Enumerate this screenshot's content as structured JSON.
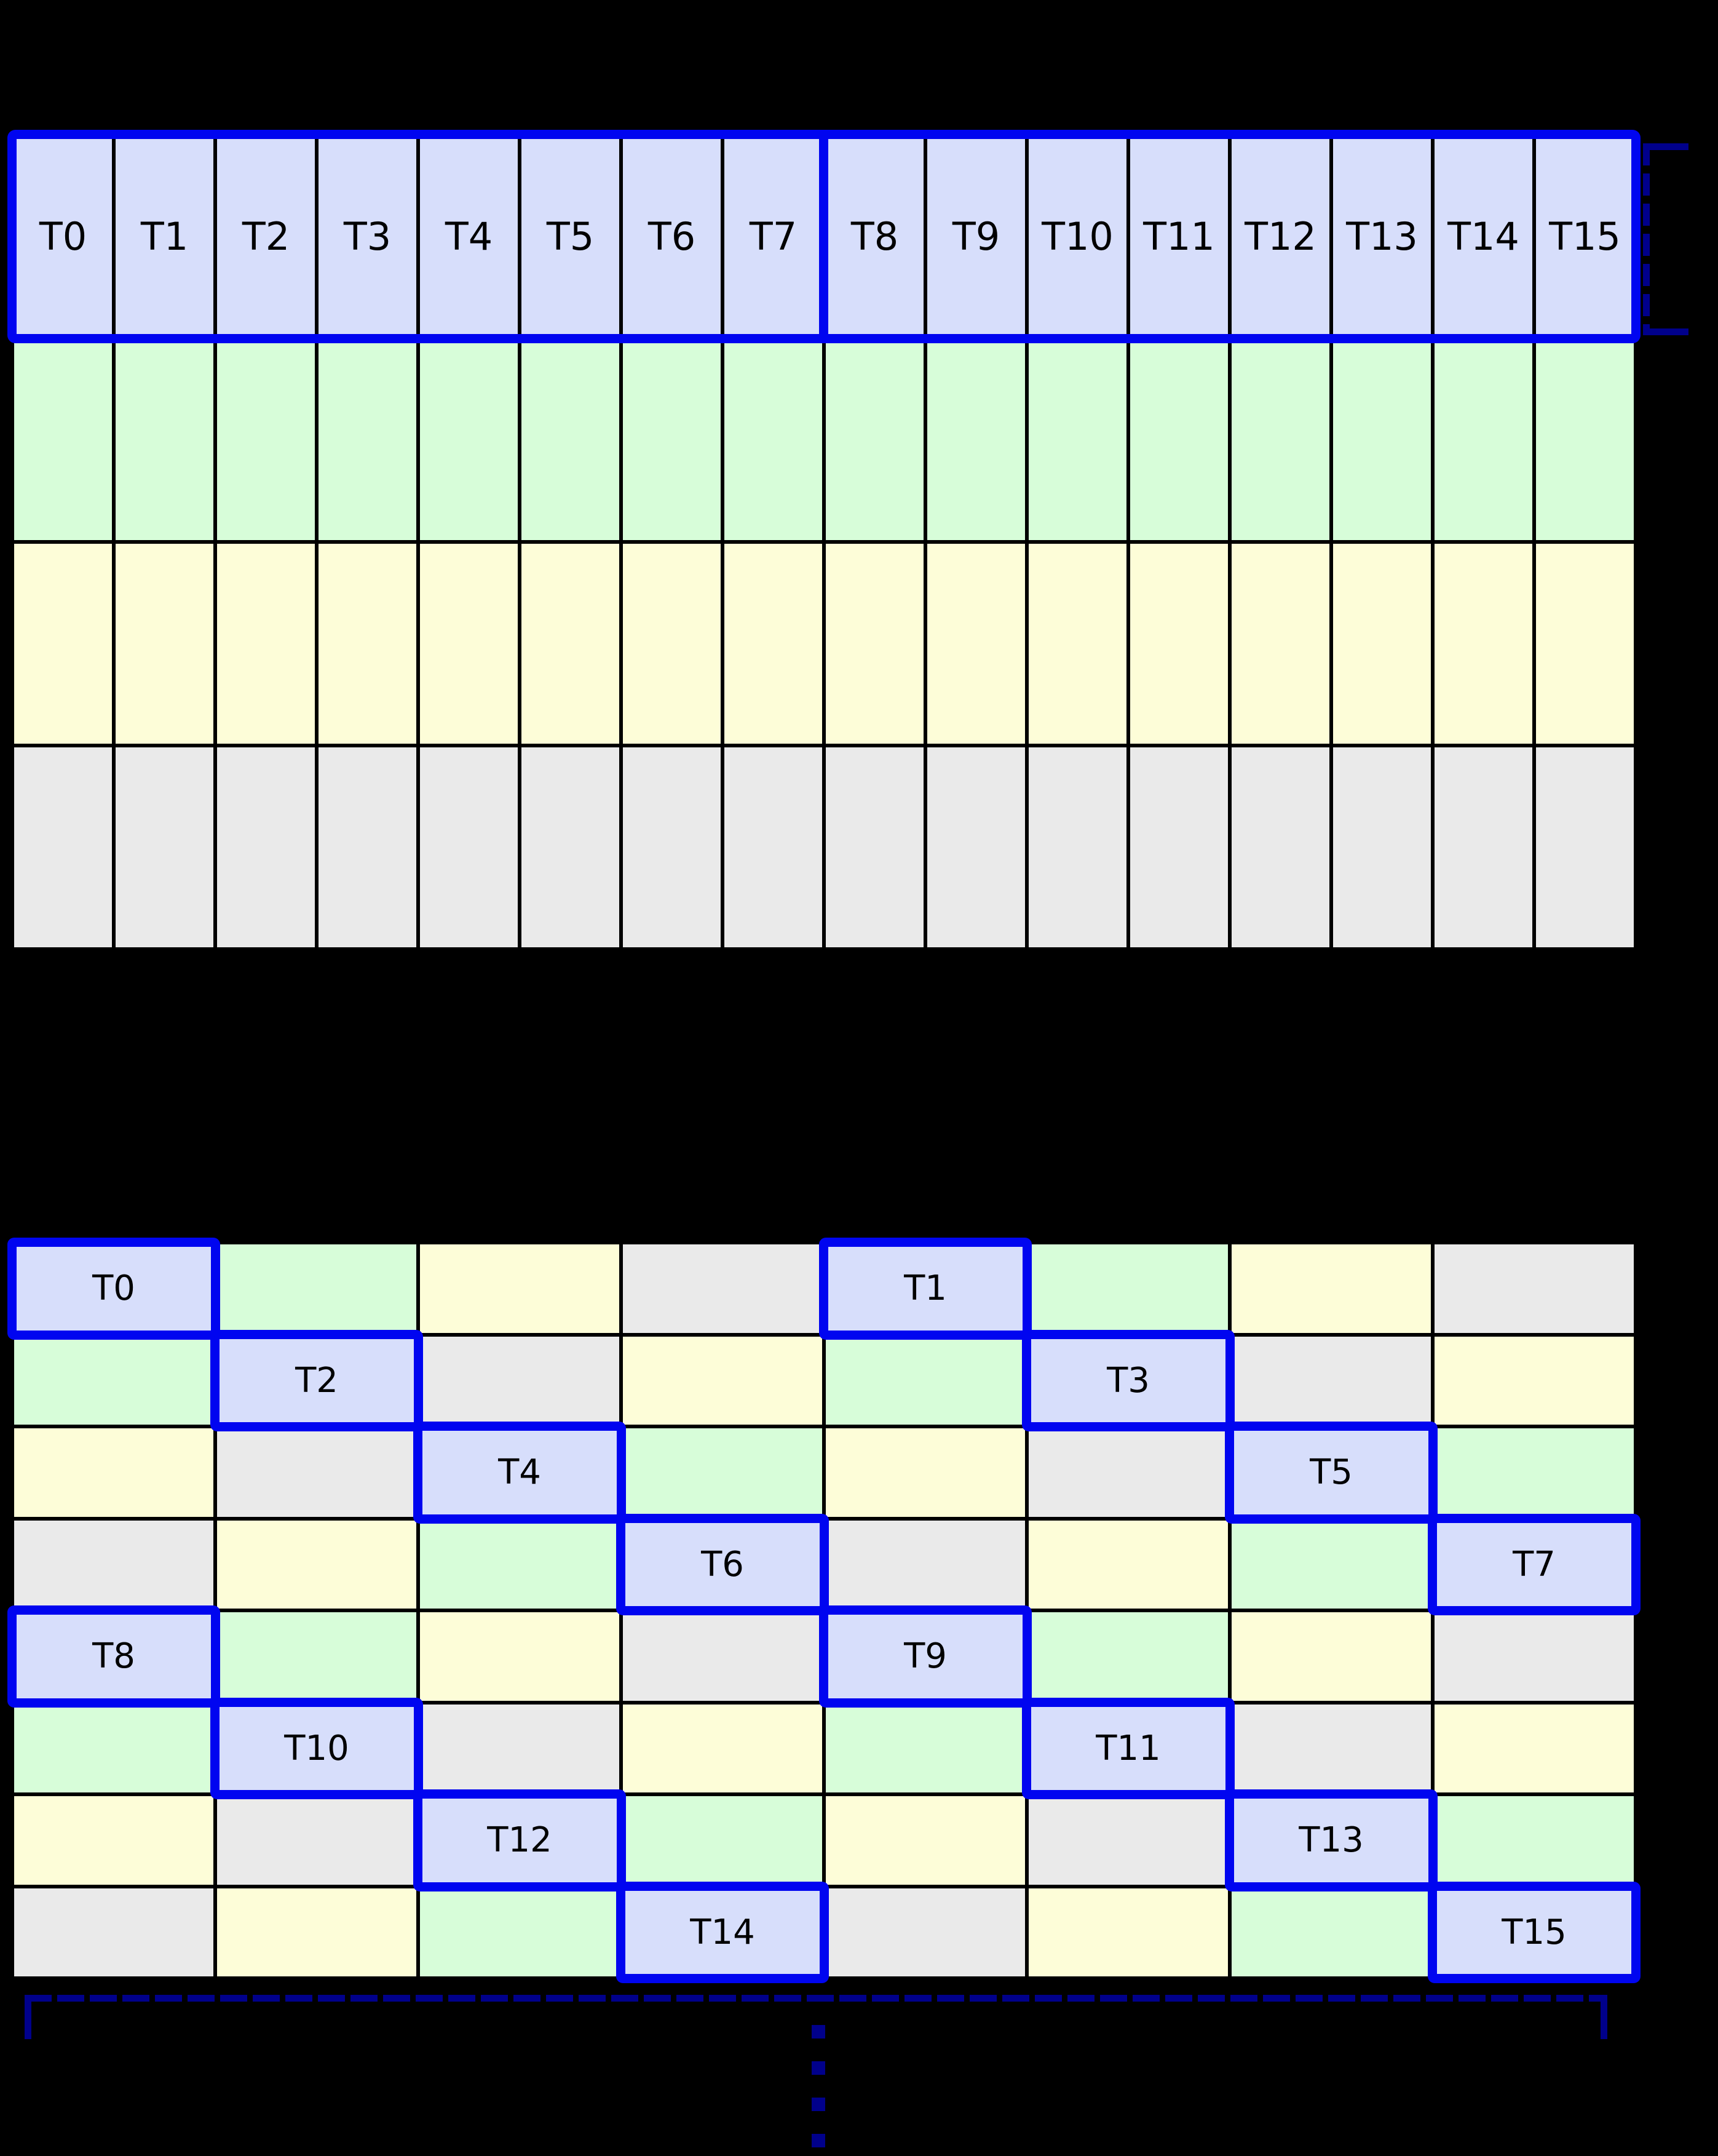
{
  "palette": {
    "background": "#000000",
    "cell_thread": "#d7defb",
    "cell_green": "#d7fdd9",
    "cell_yellow": "#fdfdd8",
    "cell_gray": "#eaeaea",
    "grid_line": "#000000",
    "warp_border": "#0005f0",
    "bracket": "#00008b",
    "label_text": "#000000"
  },
  "top_grid": {
    "rows": [
      {
        "type": "thread",
        "labels": [
          "T0",
          "T1",
          "T2",
          "T3",
          "T4",
          "T5",
          "T6",
          "T7",
          "T8",
          "T9",
          "T10",
          "T11",
          "T12",
          "T13",
          "T14",
          "T15"
        ]
      },
      {
        "type": "memory",
        "color": "cell_green"
      },
      {
        "type": "memory",
        "color": "cell_yellow"
      },
      {
        "type": "memory",
        "color": "cell_gray"
      }
    ],
    "columns": 16,
    "warp_split_after_column": 8
  },
  "bottom_grid": {
    "columns": 8,
    "rows": 8,
    "cells": [
      [
        {
          "c": "cell_thread",
          "t": "T0"
        },
        {
          "c": "cell_green"
        },
        {
          "c": "cell_yellow"
        },
        {
          "c": "cell_gray"
        },
        {
          "c": "cell_thread",
          "t": "T1"
        },
        {
          "c": "cell_green"
        },
        {
          "c": "cell_yellow"
        },
        {
          "c": "cell_gray"
        }
      ],
      [
        {
          "c": "cell_green"
        },
        {
          "c": "cell_thread",
          "t": "T2"
        },
        {
          "c": "cell_gray"
        },
        {
          "c": "cell_yellow"
        },
        {
          "c": "cell_green"
        },
        {
          "c": "cell_thread",
          "t": "T3"
        },
        {
          "c": "cell_gray"
        },
        {
          "c": "cell_yellow"
        }
      ],
      [
        {
          "c": "cell_yellow"
        },
        {
          "c": "cell_gray"
        },
        {
          "c": "cell_thread",
          "t": "T4"
        },
        {
          "c": "cell_green"
        },
        {
          "c": "cell_yellow"
        },
        {
          "c": "cell_gray"
        },
        {
          "c": "cell_thread",
          "t": "T5"
        },
        {
          "c": "cell_green"
        }
      ],
      [
        {
          "c": "cell_gray"
        },
        {
          "c": "cell_yellow"
        },
        {
          "c": "cell_green"
        },
        {
          "c": "cell_thread",
          "t": "T6"
        },
        {
          "c": "cell_gray"
        },
        {
          "c": "cell_yellow"
        },
        {
          "c": "cell_green"
        },
        {
          "c": "cell_thread",
          "t": "T7"
        }
      ],
      [
        {
          "c": "cell_thread",
          "t": "T8"
        },
        {
          "c": "cell_green"
        },
        {
          "c": "cell_yellow"
        },
        {
          "c": "cell_gray"
        },
        {
          "c": "cell_thread",
          "t": "T9"
        },
        {
          "c": "cell_green"
        },
        {
          "c": "cell_yellow"
        },
        {
          "c": "cell_gray"
        }
      ],
      [
        {
          "c": "cell_green"
        },
        {
          "c": "cell_thread",
          "t": "T10"
        },
        {
          "c": "cell_gray"
        },
        {
          "c": "cell_yellow"
        },
        {
          "c": "cell_green"
        },
        {
          "c": "cell_thread",
          "t": "T11"
        },
        {
          "c": "cell_gray"
        },
        {
          "c": "cell_yellow"
        }
      ],
      [
        {
          "c": "cell_yellow"
        },
        {
          "c": "cell_gray"
        },
        {
          "c": "cell_thread",
          "t": "T12"
        },
        {
          "c": "cell_green"
        },
        {
          "c": "cell_yellow"
        },
        {
          "c": "cell_gray"
        },
        {
          "c": "cell_thread",
          "t": "T13"
        },
        {
          "c": "cell_green"
        }
      ],
      [
        {
          "c": "cell_gray"
        },
        {
          "c": "cell_yellow"
        },
        {
          "c": "cell_green"
        },
        {
          "c": "cell_thread",
          "t": "T14"
        },
        {
          "c": "cell_gray"
        },
        {
          "c": "cell_yellow"
        },
        {
          "c": "cell_green"
        },
        {
          "c": "cell_thread",
          "t": "T15"
        }
      ]
    ]
  },
  "annotations": {
    "continuation_dot_count": 4
  }
}
